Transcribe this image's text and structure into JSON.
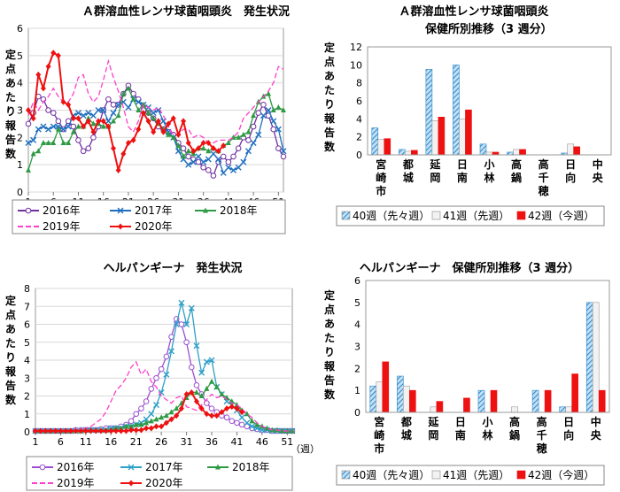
{
  "chart_data": [
    {
      "id": "c1",
      "type": "line",
      "title": "Ａ群溶血性レンサ球菌咽頭炎　発生状況",
      "ylabel": "定点あたり報告数",
      "ylim": [
        0,
        6
      ],
      "yticks": [
        0,
        1,
        2,
        3,
        4,
        5,
        6
      ],
      "xlim": [
        1,
        52
      ],
      "xticks": [
        1,
        6,
        11,
        16,
        21,
        26,
        31,
        36,
        41,
        46,
        51
      ],
      "grid": true,
      "legend_position": "bottom",
      "series": [
        {
          "name": "2016年",
          "color": "#7030a0",
          "marker": "circle",
          "dash": "none",
          "values": [
            2.5,
            2.9,
            3.5,
            3.4,
            3.0,
            2.9,
            2.6,
            2.3,
            2.6,
            2.4,
            1.9,
            1.5,
            1.6,
            2.0,
            2.4,
            3.0,
            3.4,
            3.2,
            3.2,
            3.6,
            3.9,
            3.6,
            3.4,
            3.0,
            2.9,
            2.7,
            2.4,
            2.3,
            2.2,
            2.1,
            1.8,
            1.6,
            1.3,
            1.2,
            1.1,
            0.9,
            0.8,
            0.6,
            1.1,
            1.3,
            1.1,
            1.3,
            1.6,
            2.0,
            1.9,
            2.4,
            2.9,
            3.2,
            2.8,
            2.3,
            1.6,
            1.3
          ]
        },
        {
          "name": "2017年",
          "color": "#1f6fc0",
          "marker": "x",
          "dash": "none",
          "values": [
            1.8,
            1.9,
            2.3,
            2.4,
            2.3,
            2.4,
            2.4,
            2.3,
            2.4,
            2.8,
            2.9,
            2.8,
            2.9,
            2.8,
            3.0,
            3.0,
            2.6,
            2.9,
            3.2,
            3.3,
            3.1,
            3.4,
            3.3,
            3.2,
            3.1,
            2.9,
            3.0,
            2.6,
            2.2,
            2.0,
            1.5,
            1.2,
            1.0,
            1.1,
            1.3,
            1.1,
            1.2,
            1.4,
            1.2,
            0.7,
            0.9,
            0.8,
            0.9,
            1.1,
            1.5,
            1.8,
            2.1,
            2.8,
            3.0,
            2.6,
            2.3,
            1.5
          ]
        },
        {
          "name": "2018年",
          "color": "#2e9a44",
          "marker": "triangle",
          "dash": "none",
          "values": [
            0.8,
            1.4,
            1.5,
            1.8,
            1.8,
            1.8,
            2.3,
            1.8,
            1.8,
            2.2,
            2.4,
            2.4,
            2.7,
            2.5,
            2.5,
            2.4,
            2.4,
            2.6,
            2.8,
            3.6,
            3.8,
            3.4,
            3.0,
            3.2,
            2.9,
            2.7,
            2.5,
            2.3,
            2.1,
            2.0,
            1.7,
            1.3,
            1.5,
            1.4,
            1.6,
            1.6,
            1.5,
            1.6,
            1.5,
            1.7,
            1.8,
            2.0,
            2.0,
            2.1,
            2.2,
            2.8,
            3.3,
            3.5,
            3.6,
            3.0,
            3.1,
            3.0
          ]
        },
        {
          "name": "2019年",
          "color": "#ff3fc9",
          "marker": "none",
          "dash": "dashed",
          "values": [
            2.8,
            3.3,
            3.0,
            3.3,
            3.5,
            3.8,
            3.5,
            3.3,
            3.3,
            3.6,
            4.2,
            4.3,
            3.6,
            3.3,
            3.5,
            4.1,
            4.8,
            4.2,
            3.7,
            3.1,
            2.4,
            2.2,
            2.6,
            3.2,
            3.1,
            3.0,
            3.1,
            2.8,
            2.4,
            2.1,
            2.1,
            2.3,
            2.3,
            2.0,
            2.1,
            2.0,
            1.8,
            1.8,
            1.9,
            1.9,
            1.9,
            2.0,
            2.2,
            2.7,
            2.9,
            3.1,
            3.3,
            3.5,
            3.7,
            4.0,
            4.6,
            4.5
          ]
        },
        {
          "name": "2020年",
          "color": "#ee1111",
          "marker": "diamond",
          "dash": "none",
          "values": [
            3.0,
            2.7,
            4.3,
            3.8,
            4.6,
            5.1,
            5.0,
            3.3,
            3.2,
            2.7,
            2.7,
            2.4,
            2.6,
            2.2,
            2.6,
            2.6,
            2.4,
            1.6,
            0.8,
            1.4,
            1.8,
            1.9,
            2.3,
            2.9,
            2.6,
            2.2,
            2.6,
            2.2,
            2.5,
            2.7,
            2.1,
            2.6,
            1.8,
            1.5,
            1.6,
            1.8,
            1.8,
            1.6,
            1.5,
            1.7
          ]
        }
      ]
    },
    {
      "id": "c2",
      "type": "bar",
      "title": "Ａ群溶血性レンサ球菌咽頭炎",
      "subtitle": "保健所別推移（3 週分）",
      "ylabel": "定点あたり報告数",
      "ylim": [
        0,
        12
      ],
      "yticks": [
        0,
        2,
        4,
        6,
        8,
        10,
        12
      ],
      "categories": [
        "宮崎市",
        "都城",
        "延岡",
        "日南",
        "小林",
        "高鍋",
        "高千穂",
        "日向",
        "中央"
      ],
      "legend_position": "bottom",
      "series": [
        {
          "name": "40週（先々週）",
          "color": "#5aa6d8",
          "pattern": "hatch",
          "values": [
            3.0,
            0.6,
            9.5,
            10.0,
            1.2,
            0.3,
            0,
            0.2,
            0
          ]
        },
        {
          "name": "41週（先週）",
          "color": "#f2f2f2",
          "pattern": "light",
          "values": [
            1.7,
            0.4,
            3.8,
            4.0,
            0.3,
            0.6,
            0,
            1.2,
            0
          ]
        },
        {
          "name": "42週（今週）",
          "color": "#ee1111",
          "pattern": "solid",
          "values": [
            1.8,
            0.5,
            4.2,
            5.0,
            0.3,
            0.6,
            0,
            0.9,
            0
          ]
        }
      ]
    },
    {
      "id": "c3",
      "type": "line",
      "title": "ヘルパンギーナ　発生状況",
      "ylabel": "定点あたり報告数",
      "xlabel": "（週）",
      "ylim": [
        0,
        8
      ],
      "yticks": [
        0,
        1,
        2,
        3,
        4,
        5,
        6,
        7,
        8
      ],
      "xlim": [
        1,
        52
      ],
      "xticks": [
        1,
        6,
        11,
        16,
        21,
        26,
        31,
        36,
        41,
        46,
        51
      ],
      "grid": true,
      "legend_position": "bottom",
      "series": [
        {
          "name": "2016年",
          "color": "#9b4fd0",
          "marker": "circle",
          "dash": "none",
          "values": [
            0.05,
            0.05,
            0.05,
            0.05,
            0.05,
            0.05,
            0.05,
            0.05,
            0.1,
            0.1,
            0.1,
            0.1,
            0.1,
            0.15,
            0.2,
            0.2,
            0.2,
            0.3,
            0.4,
            0.6,
            1.0,
            1.3,
            1.7,
            2.4,
            3.0,
            3.5,
            4.2,
            5.3,
            6.3,
            6.0,
            5.0,
            3.6,
            2.6,
            2.1,
            1.6,
            1.3,
            1.1,
            0.9,
            0.8,
            0.6,
            0.5,
            0.4,
            0.3,
            0.2,
            0.15,
            0.1,
            0.1,
            0.05,
            0.05,
            0.05,
            0.05,
            0.05
          ]
        },
        {
          "name": "2017年",
          "color": "#2fa0c8",
          "marker": "x",
          "dash": "none",
          "values": [
            0.05,
            0.05,
            0.05,
            0.05,
            0.05,
            0.05,
            0.05,
            0.05,
            0.05,
            0.05,
            0.1,
            0.1,
            0.1,
            0.1,
            0.1,
            0.2,
            0.2,
            0.2,
            0.3,
            0.3,
            0.4,
            0.5,
            0.7,
            1.0,
            1.5,
            2.2,
            3.2,
            4.5,
            6.0,
            7.2,
            6.0,
            6.9,
            4.8,
            3.3,
            3.9,
            4.0,
            2.5,
            2.1,
            1.7,
            1.5,
            1.2,
            0.8,
            0.5,
            0.3,
            0.2,
            0.1,
            0.1,
            0.05,
            0.05,
            0.05,
            0.05,
            0.05
          ]
        },
        {
          "name": "2018年",
          "color": "#2e9a44",
          "marker": "triangle",
          "dash": "none",
          "values": [
            0.05,
            0.05,
            0.05,
            0.05,
            0.05,
            0.05,
            0.05,
            0.05,
            0.05,
            0.05,
            0.1,
            0.1,
            0.1,
            0.1,
            0.1,
            0.1,
            0.2,
            0.2,
            0.3,
            0.3,
            0.4,
            0.4,
            0.5,
            0.6,
            0.7,
            0.8,
            0.9,
            1.1,
            1.3,
            1.6,
            1.9,
            2.2,
            2.2,
            2.0,
            2.4,
            2.8,
            2.5,
            2.1,
            1.9,
            1.7,
            1.5,
            1.2,
            1.0,
            0.6,
            0.4,
            0.3,
            0.2,
            0.1,
            0.1,
            0.05,
            0.05,
            0.05
          ]
        },
        {
          "name": "2019年",
          "color": "#ff3fc9",
          "marker": "none",
          "dash": "dashed",
          "values": [
            0.05,
            0.05,
            0.05,
            0.05,
            0.05,
            0.05,
            0.05,
            0.05,
            0.1,
            0.1,
            0.2,
            0.3,
            0.5,
            0.7,
            1.1,
            1.7,
            2.3,
            2.6,
            3.0,
            3.6,
            3.9,
            3.2,
            3.5,
            2.8,
            2.5,
            2.0,
            1.8,
            1.6,
            1.9,
            2.0,
            1.4,
            1.3,
            1.2,
            1.5,
            1.8,
            2.1,
            1.9,
            2.0,
            1.8,
            1.6,
            1.5,
            1.3,
            1.0,
            0.8,
            0.5,
            0.3,
            0.2,
            0.1,
            0.1,
            0.05,
            0.05,
            0.05
          ]
        },
        {
          "name": "2020年",
          "color": "#ee1111",
          "marker": "diamond",
          "dash": "none",
          "values": [
            0.05,
            0.05,
            0.05,
            0.05,
            0.05,
            0.05,
            0.05,
            0.05,
            0.05,
            0.05,
            0.05,
            0.05,
            0.05,
            0.05,
            0.05,
            0.05,
            0.05,
            0.05,
            0.05,
            0.1,
            0.1,
            0.1,
            0.2,
            0.2,
            0.3,
            0.3,
            0.5,
            0.7,
            0.9,
            1.3,
            2.1,
            2.2,
            1.7,
            1.3,
            1.0,
            0.9,
            0.9,
            1.1,
            1.3,
            1.4,
            1.3,
            1.1
          ]
        }
      ]
    },
    {
      "id": "c4",
      "type": "bar",
      "title": "ヘルパンギーナ　保健所別推移（3 週分）",
      "ylabel": "定点あたり報告数",
      "ylim": [
        0,
        6
      ],
      "yticks": [
        0,
        1,
        2,
        3,
        4,
        5,
        6
      ],
      "categories": [
        "宮崎市",
        "都城",
        "延岡",
        "日南",
        "小林",
        "高鍋",
        "高千穂",
        "日向",
        "中央"
      ],
      "legend_position": "bottom",
      "series": [
        {
          "name": "40週（先々週）",
          "color": "#5aa6d8",
          "pattern": "hatch",
          "values": [
            1.2,
            1.65,
            0,
            0,
            1.0,
            0,
            1.0,
            0.25,
            5.0
          ]
        },
        {
          "name": "41週（先週）",
          "color": "#f2f2f2",
          "pattern": "light",
          "values": [
            1.4,
            1.2,
            0.25,
            0,
            0,
            0.25,
            0,
            0.25,
            5.0
          ]
        },
        {
          "name": "42週（今週）",
          "color": "#ee1111",
          "pattern": "solid",
          "values": [
            2.3,
            1.0,
            0.5,
            0.65,
            1.0,
            0,
            1.0,
            1.75,
            1.0
          ]
        }
      ]
    }
  ]
}
